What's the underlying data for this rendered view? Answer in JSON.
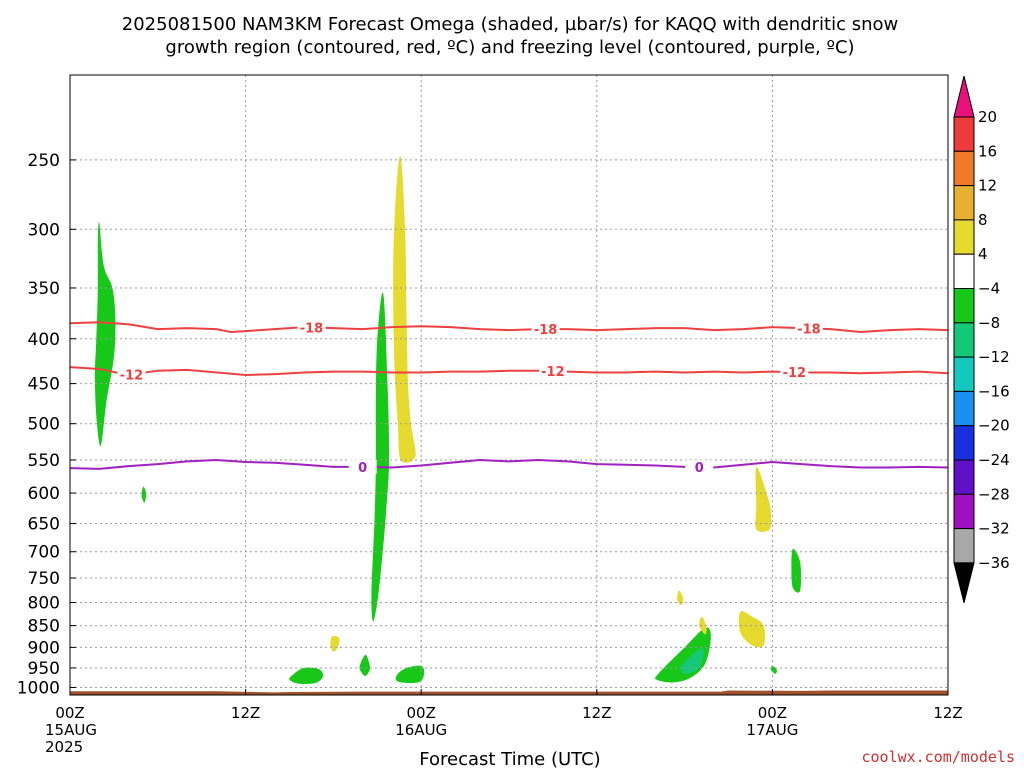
{
  "chart_data": {
    "type": "heatmap",
    "title_line1": "2025081500 NAM3KM Forecast Omega (shaded, µbar/s) for KAQQ with dendritic snow",
    "title_line2": "growth region (contoured, red, ºC) and freezing level (contoured, purple, ºC)",
    "xlabel": "Forecast Time (UTC)",
    "credit": "coolwx.com/models",
    "x_axis": {
      "unit": "hours from 2025081500",
      "range": [
        0,
        60
      ],
      "ticks": [
        {
          "hour": 0,
          "lines": [
            "00Z",
            "15AUG",
            "2025"
          ]
        },
        {
          "hour": 12,
          "lines": [
            "12Z"
          ]
        },
        {
          "hour": 24,
          "lines": [
            "00Z",
            "16AUG"
          ]
        },
        {
          "hour": 36,
          "lines": [
            "12Z"
          ]
        },
        {
          "hour": 48,
          "lines": [
            "00Z",
            "17AUG"
          ]
        },
        {
          "hour": 60,
          "lines": [
            "12Z"
          ]
        }
      ],
      "grid": true
    },
    "y_axis": {
      "unit": "hPa",
      "scale": "log-pressure",
      "range": [
        1020,
        200
      ],
      "ticks": [
        250,
        300,
        350,
        400,
        450,
        500,
        550,
        600,
        650,
        700,
        750,
        800,
        850,
        900,
        950,
        1000
      ],
      "grid": true
    },
    "colorbar": {
      "position": "right",
      "labels": [
        "20",
        "16",
        "12",
        "8",
        "4",
        "−4",
        "−8",
        "−12",
        "−16",
        "−20",
        "−24",
        "−28",
        "−32",
        "−36"
      ],
      "bins": [
        {
          "range": [
            20,
            99
          ],
          "color": "#e8107a"
        },
        {
          "range": [
            16,
            20
          ],
          "color": "#ee3a3a"
        },
        {
          "range": [
            12,
            16
          ],
          "color": "#f07a2a"
        },
        {
          "range": [
            8,
            12
          ],
          "color": "#e8b030"
        },
        {
          "range": [
            4,
            8
          ],
          "color": "#e6da2e"
        },
        {
          "range": [
            -4,
            4
          ],
          "color": "#ffffff"
        },
        {
          "range": [
            -8,
            -4
          ],
          "color": "#18c818"
        },
        {
          "range": [
            -12,
            -8
          ],
          "color": "#14c878"
        },
        {
          "range": [
            -16,
            -12
          ],
          "color": "#14c8c0"
        },
        {
          "range": [
            -20,
            -16
          ],
          "color": "#1890f0"
        },
        {
          "range": [
            -24,
            -20
          ],
          "color": "#1830e0"
        },
        {
          "range": [
            -28,
            -24
          ],
          "color": "#6010c8"
        },
        {
          "range": [
            -32,
            -28
          ],
          "color": "#a010c0"
        },
        {
          "range": [
            -36,
            -32
          ],
          "color": "#a8a8a8"
        },
        {
          "range": [
            -99,
            -36
          ],
          "color": "#000000"
        }
      ]
    },
    "contours": [
      {
        "level": "-18",
        "color": "#ee4040",
        "label_hours": [
          16.5,
          32.5,
          50.5
        ],
        "points": [
          [
            0,
            384
          ],
          [
            2,
            383
          ],
          [
            4,
            385
          ],
          [
            6,
            390
          ],
          [
            8,
            389
          ],
          [
            10,
            390
          ],
          [
            11,
            393
          ],
          [
            12,
            392
          ],
          [
            14,
            390
          ],
          [
            16,
            388
          ],
          [
            18,
            389
          ],
          [
            20,
            390
          ],
          [
            22,
            388
          ],
          [
            24,
            387
          ],
          [
            26,
            388
          ],
          [
            28,
            390
          ],
          [
            30,
            391
          ],
          [
            32,
            390
          ],
          [
            34,
            390
          ],
          [
            36,
            391
          ],
          [
            38,
            390
          ],
          [
            40,
            389
          ],
          [
            42,
            389
          ],
          [
            44,
            391
          ],
          [
            46,
            390
          ],
          [
            48,
            388
          ],
          [
            50,
            389
          ],
          [
            52,
            390
          ],
          [
            54,
            393
          ],
          [
            56,
            391
          ],
          [
            58,
            390
          ],
          [
            60,
            391
          ]
        ]
      },
      {
        "level": "-12",
        "color": "#ee4040",
        "label_hours": [
          4.2,
          33.0,
          49.5
        ],
        "points": [
          [
            0,
            431
          ],
          [
            2,
            433
          ],
          [
            4,
            440
          ],
          [
            6,
            435
          ],
          [
            8,
            434
          ],
          [
            10,
            437
          ],
          [
            12,
            440
          ],
          [
            14,
            439
          ],
          [
            16,
            437
          ],
          [
            18,
            436
          ],
          [
            20,
            436
          ],
          [
            22,
            437
          ],
          [
            24,
            437
          ],
          [
            26,
            436
          ],
          [
            28,
            436
          ],
          [
            30,
            435
          ],
          [
            32,
            435
          ],
          [
            34,
            436
          ],
          [
            36,
            437
          ],
          [
            38,
            437
          ],
          [
            40,
            436
          ],
          [
            42,
            437
          ],
          [
            44,
            436
          ],
          [
            46,
            437
          ],
          [
            48,
            436
          ],
          [
            50,
            437
          ],
          [
            52,
            437
          ],
          [
            54,
            438
          ],
          [
            56,
            437
          ],
          [
            58,
            436
          ],
          [
            60,
            438
          ]
        ]
      },
      {
        "level": "0",
        "color": "#a020c0",
        "label_hours": [
          20.0,
          43.0
        ],
        "points": [
          [
            0,
            562
          ],
          [
            2,
            563
          ],
          [
            4,
            559
          ],
          [
            6,
            556
          ],
          [
            8,
            552
          ],
          [
            10,
            550
          ],
          [
            12,
            553
          ],
          [
            14,
            554
          ],
          [
            16,
            557
          ],
          [
            18,
            560
          ],
          [
            20,
            560
          ],
          [
            22,
            561
          ],
          [
            24,
            558
          ],
          [
            26,
            554
          ],
          [
            28,
            550
          ],
          [
            30,
            552
          ],
          [
            32,
            550
          ],
          [
            34,
            552
          ],
          [
            36,
            556
          ],
          [
            38,
            557
          ],
          [
            40,
            558
          ],
          [
            42,
            560
          ],
          [
            44,
            561
          ],
          [
            46,
            557
          ],
          [
            48,
            553
          ],
          [
            50,
            556
          ],
          [
            52,
            559
          ],
          [
            54,
            561
          ],
          [
            56,
            561
          ],
          [
            58,
            560
          ],
          [
            60,
            561
          ]
        ]
      }
    ],
    "omega_regions": [
      {
        "value": -6,
        "points": [
          [
            2.0,
            295
          ],
          [
            2.3,
            330
          ],
          [
            2.9,
            350
          ],
          [
            3.1,
            380
          ],
          [
            3.0,
            420
          ],
          [
            2.5,
            470
          ],
          [
            2.1,
            530
          ],
          [
            1.8,
            490
          ],
          [
            1.7,
            440
          ],
          [
            1.8,
            400
          ],
          [
            1.9,
            350
          ],
          [
            1.9,
            310
          ]
        ]
      },
      {
        "value": -6,
        "points": [
          [
            5.0,
            590
          ],
          [
            5.2,
            600
          ],
          [
            5.1,
            615
          ],
          [
            4.9,
            605
          ]
        ]
      },
      {
        "value": 6,
        "points": [
          [
            22.6,
            248
          ],
          [
            22.9,
            300
          ],
          [
            23.0,
            380
          ],
          [
            23.1,
            450
          ],
          [
            23.3,
            500
          ],
          [
            23.6,
            545
          ],
          [
            22.6,
            550
          ],
          [
            22.4,
            500
          ],
          [
            22.2,
            440
          ],
          [
            22.1,
            380
          ],
          [
            22.1,
            320
          ],
          [
            22.3,
            270
          ]
        ]
      },
      {
        "value": -6,
        "points": [
          [
            21.4,
            355
          ],
          [
            21.7,
            450
          ],
          [
            21.8,
            550
          ],
          [
            21.6,
            630
          ],
          [
            21.3,
            720
          ],
          [
            21.0,
            800
          ],
          [
            20.7,
            840
          ],
          [
            20.6,
            780
          ],
          [
            20.8,
            650
          ],
          [
            20.9,
            560
          ],
          [
            20.9,
            470
          ],
          [
            21.0,
            400
          ]
        ]
      },
      {
        "value": -6,
        "points": [
          [
            20.2,
            918
          ],
          [
            20.5,
            950
          ],
          [
            20.2,
            970
          ],
          [
            19.9,
            960
          ],
          [
            19.8,
            945
          ]
        ]
      },
      {
        "value": -6,
        "points": [
          [
            22.4,
            965
          ],
          [
            23.0,
            950
          ],
          [
            24.0,
            945
          ],
          [
            24.2,
            965
          ],
          [
            23.9,
            985
          ],
          [
            23.0,
            988
          ],
          [
            22.3,
            982
          ]
        ]
      },
      {
        "value": -6,
        "points": [
          [
            15.2,
            968
          ],
          [
            16.0,
            950
          ],
          [
            17.0,
            953
          ],
          [
            17.3,
            970
          ],
          [
            16.8,
            988
          ],
          [
            15.6,
            990
          ],
          [
            15.0,
            980
          ]
        ]
      },
      {
        "value": 6,
        "points": [
          [
            17.9,
            875
          ],
          [
            18.4,
            878
          ],
          [
            18.3,
            900
          ],
          [
            18.0,
            910
          ],
          [
            17.8,
            895
          ]
        ]
      },
      {
        "value": -6,
        "points": [
          [
            40.2,
            965
          ],
          [
            42.0,
            900
          ],
          [
            43.4,
            855
          ],
          [
            43.8,
            875
          ],
          [
            43.4,
            940
          ],
          [
            42.4,
            975
          ],
          [
            41.2,
            987
          ],
          [
            40.1,
            980
          ]
        ]
      },
      {
        "value": -10,
        "points": [
          [
            41.8,
            945
          ],
          [
            42.8,
            910
          ],
          [
            43.3,
            905
          ],
          [
            43.0,
            950
          ],
          [
            42.0,
            965
          ]
        ]
      },
      {
        "value": 6,
        "points": [
          [
            41.6,
            775
          ],
          [
            41.9,
            790
          ],
          [
            41.8,
            805
          ],
          [
            41.5,
            795
          ]
        ]
      },
      {
        "value": 6,
        "points": [
          [
            43.2,
            830
          ],
          [
            43.5,
            855
          ],
          [
            43.4,
            870
          ],
          [
            43.0,
            850
          ]
        ]
      },
      {
        "value": 6,
        "points": [
          [
            45.8,
            820
          ],
          [
            46.6,
            830
          ],
          [
            47.4,
            850
          ],
          [
            47.4,
            895
          ],
          [
            46.6,
            895
          ],
          [
            45.8,
            865
          ]
        ]
      },
      {
        "value": 6,
        "points": [
          [
            46.9,
            560
          ],
          [
            47.6,
            600
          ],
          [
            47.9,
            630
          ],
          [
            47.8,
            660
          ],
          [
            46.9,
            660
          ],
          [
            46.9,
            620
          ]
        ]
      },
      {
        "value": -6,
        "points": [
          [
            49.4,
            695
          ],
          [
            49.9,
            720
          ],
          [
            49.9,
            775
          ],
          [
            49.4,
            770
          ],
          [
            49.3,
            730
          ]
        ]
      },
      {
        "value": -6,
        "points": [
          [
            48.0,
            945
          ],
          [
            48.3,
            955
          ],
          [
            48.2,
            965
          ],
          [
            47.9,
            955
          ]
        ]
      }
    ],
    "terrain": {
      "color": "#a0522d",
      "points": [
        [
          0,
          1010
        ],
        [
          10,
          1010
        ],
        [
          14,
          1013
        ],
        [
          15,
          1012
        ],
        [
          20,
          1011
        ],
        [
          30,
          1011
        ],
        [
          40,
          1011
        ],
        [
          44.5,
          1011
        ],
        [
          45,
          1008
        ],
        [
          50,
          1009
        ],
        [
          52,
          1008
        ],
        [
          60,
          1008
        ]
      ]
    }
  }
}
